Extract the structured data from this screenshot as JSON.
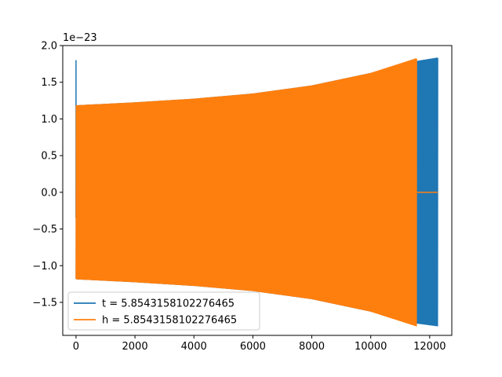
{
  "chart_data": {
    "type": "line",
    "title": "",
    "xlabel": "",
    "ylabel": "",
    "y_offset_label": "1e−23",
    "xlim": [
      -450,
      12750
    ],
    "ylim": [
      -1.95,
      2.0
    ],
    "x_ticks": [
      0,
      2000,
      4000,
      6000,
      8000,
      10000,
      12000
    ],
    "x_tick_labels": [
      "0",
      "2000",
      "4000",
      "6000",
      "8000",
      "10000",
      "12000"
    ],
    "y_ticks": [
      -1.5,
      -1.0,
      -0.5,
      0.0,
      0.5,
      1.0,
      1.5,
      2.0
    ],
    "y_tick_labels": [
      "−1.5",
      "−1.0",
      "−0.5",
      "0.0",
      "0.5",
      "1.0",
      "1.5",
      "2.0"
    ],
    "grid": false,
    "legend_position": "lower-left",
    "series": [
      {
        "name": "t = 5.8543158102276465",
        "color": "#1f77b4",
        "envelope": {
          "x": [
            0,
            2000,
            4000,
            6000,
            8000,
            10000,
            11500,
            12270
          ],
          "upper": [
            1.18,
            1.22,
            1.27,
            1.34,
            1.45,
            1.62,
            1.78,
            1.83
          ],
          "lower": [
            -1.18,
            -1.22,
            -1.27,
            -1.34,
            -1.45,
            -1.62,
            -1.78,
            -1.82
          ]
        },
        "initial_spike": {
          "x": 0,
          "max": 1.8,
          "min": -0.35
        }
      },
      {
        "name": "h = 5.8543158102276465",
        "color": "#ff7f0e",
        "envelope": {
          "x": [
            0,
            2000,
            4000,
            6000,
            8000,
            10000,
            11550
          ],
          "upper": [
            1.18,
            1.22,
            1.27,
            1.34,
            1.45,
            1.62,
            1.82
          ],
          "lower": [
            -1.18,
            -1.22,
            -1.27,
            -1.34,
            -1.45,
            -1.62,
            -1.82
          ]
        },
        "tail": {
          "x": [
            11550,
            12270
          ],
          "y": 0.0
        }
      }
    ]
  }
}
